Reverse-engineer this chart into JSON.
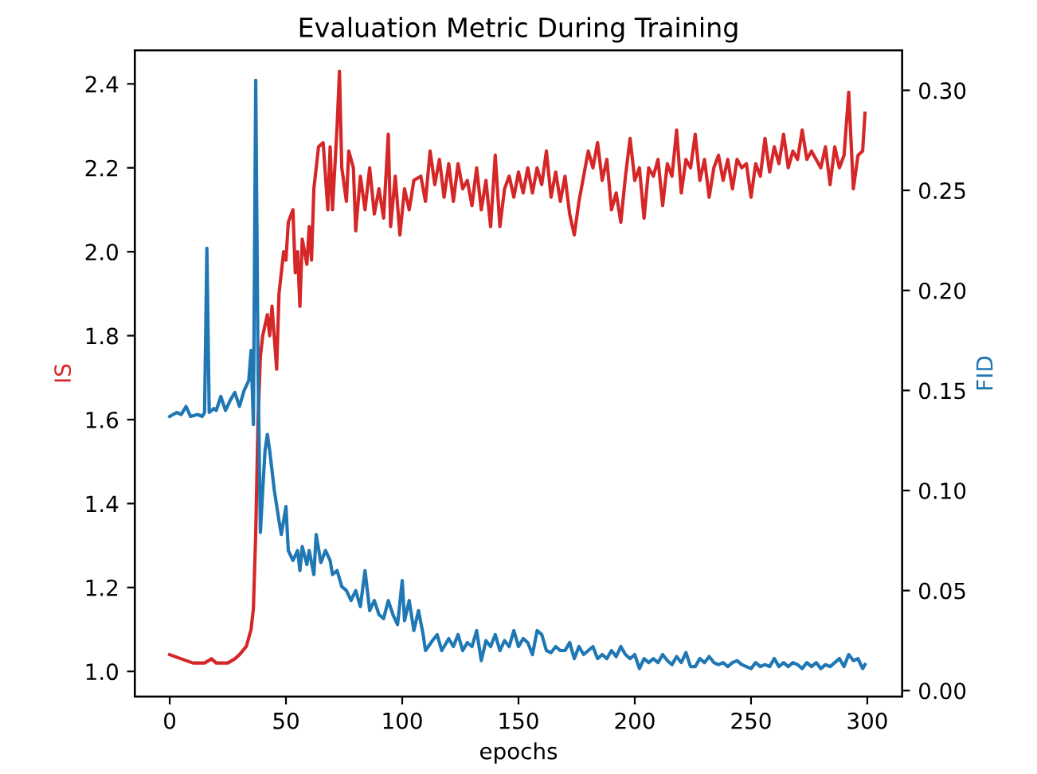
{
  "chart_data": {
    "type": "line",
    "title": "Evaluation Metric During Training",
    "xlabel": "epochs",
    "ylabel": "IS",
    "y2label": "FID",
    "xlim": [
      -15,
      315
    ],
    "xticks": [
      0,
      50,
      100,
      150,
      200,
      250,
      300
    ],
    "ylim": [
      0.94,
      2.48
    ],
    "yticks": [
      {
        "value": 1.0,
        "label": "1.0"
      },
      1.2,
      1.4,
      1.6,
      1.8,
      {
        "value": 2.0,
        "label": "2.0"
      },
      2.2,
      2.4
    ],
    "y2lim": [
      -0.003,
      0.32
    ],
    "y2ticks": [
      {
        "value": 0.0,
        "label": "0.00"
      },
      0.05,
      {
        "value": 0.1,
        "label": "0.10"
      },
      0.15,
      {
        "value": 0.2,
        "label": "0.20"
      },
      0.25,
      {
        "value": 0.3,
        "label": "0.30"
      }
    ],
    "grid": false,
    "series": [
      {
        "color": "#d62728",
        "axis": "y",
        "x": [
          0,
          5,
          10,
          15,
          18,
          20,
          25,
          28,
          30,
          33,
          35,
          36,
          37,
          38,
          39,
          40,
          42,
          43,
          44,
          46,
          47,
          49,
          50,
          51,
          53,
          54,
          55,
          56,
          57,
          59,
          60,
          61,
          62,
          64,
          66,
          68,
          69,
          70,
          72,
          73,
          74,
          76,
          77,
          79,
          80,
          82,
          84,
          86,
          88,
          90,
          92,
          94,
          95,
          97,
          99,
          101,
          103,
          105,
          108,
          110,
          112,
          114,
          116,
          118,
          120,
          122,
          124,
          126,
          128,
          130,
          132,
          134,
          136,
          138,
          140,
          142,
          144,
          146,
          148,
          150,
          152,
          154,
          156,
          158,
          160,
          162,
          164,
          166,
          168,
          170,
          172,
          174,
          176,
          178,
          180,
          182,
          184,
          186,
          188,
          190,
          192,
          194,
          196,
          198,
          200,
          202,
          204,
          206,
          208,
          210,
          212,
          214,
          216,
          218,
          220,
          222,
          224,
          226,
          228,
          230,
          232,
          234,
          236,
          238,
          240,
          242,
          244,
          246,
          248,
          250,
          252,
          254,
          256,
          258,
          260,
          262,
          264,
          266,
          268,
          270,
          272,
          274,
          276,
          278,
          280,
          282,
          284,
          286,
          288,
          290,
          292,
          294,
          296,
          298,
          299
        ],
        "values": [
          1.04,
          1.03,
          1.02,
          1.02,
          1.03,
          1.02,
          1.02,
          1.03,
          1.04,
          1.06,
          1.1,
          1.15,
          1.33,
          1.6,
          1.75,
          1.8,
          1.85,
          1.8,
          1.87,
          1.72,
          1.9,
          2.0,
          1.98,
          2.07,
          2.1,
          1.95,
          2.0,
          1.87,
          2.03,
          1.97,
          2.06,
          1.98,
          2.15,
          2.25,
          2.26,
          2.1,
          2.25,
          2.1,
          2.3,
          2.43,
          2.2,
          2.12,
          2.24,
          2.2,
          2.05,
          2.18,
          2.1,
          2.2,
          2.09,
          2.15,
          2.08,
          2.28,
          2.06,
          2.18,
          2.04,
          2.15,
          2.1,
          2.17,
          2.18,
          2.12,
          2.24,
          2.16,
          2.22,
          2.13,
          2.21,
          2.12,
          2.21,
          2.15,
          2.17,
          2.11,
          2.2,
          2.1,
          2.17,
          2.06,
          2.23,
          2.06,
          2.15,
          2.18,
          2.13,
          2.19,
          2.14,
          2.2,
          2.14,
          2.2,
          2.16,
          2.24,
          2.13,
          2.19,
          2.12,
          2.18,
          2.09,
          2.04,
          2.12,
          2.18,
          2.24,
          2.2,
          2.26,
          2.17,
          2.22,
          2.1,
          2.14,
          2.07,
          2.18,
          2.27,
          2.17,
          2.2,
          2.08,
          2.2,
          2.18,
          2.22,
          2.11,
          2.21,
          2.18,
          2.29,
          2.14,
          2.22,
          2.2,
          2.28,
          2.17,
          2.22,
          2.13,
          2.2,
          2.23,
          2.17,
          2.22,
          2.15,
          2.22,
          2.2,
          2.21,
          2.13,
          2.21,
          2.18,
          2.27,
          2.19,
          2.25,
          2.21,
          2.28,
          2.2,
          2.24,
          2.22,
          2.29,
          2.22,
          2.24,
          2.22,
          2.2,
          2.25,
          2.16,
          2.25,
          2.2,
          2.23,
          2.38,
          2.15,
          2.23,
          2.24,
          2.33
        ]
      },
      {
        "color": "#1f77b4",
        "axis": "y2",
        "x": [
          0,
          3,
          5,
          7,
          9,
          12,
          14,
          15,
          16,
          17,
          19,
          20,
          22,
          24,
          26,
          28,
          30,
          32,
          34,
          35,
          36,
          37,
          38,
          39,
          40,
          41,
          42,
          43,
          45,
          47,
          48,
          50,
          51,
          53,
          55,
          56,
          57,
          59,
          60,
          62,
          63,
          65,
          67,
          69,
          70,
          72,
          74,
          76,
          78,
          80,
          82,
          84,
          86,
          88,
          90,
          92,
          94,
          96,
          98,
          100,
          101,
          103,
          105,
          107,
          109,
          110,
          113,
          115,
          117,
          120,
          122,
          124,
          126,
          128,
          130,
          132,
          134,
          136,
          138,
          140,
          142,
          144,
          146,
          148,
          150,
          152,
          154,
          156,
          158,
          160,
          162,
          164,
          166,
          168,
          170,
          172,
          174,
          176,
          178,
          180,
          182,
          184,
          186,
          188,
          190,
          192,
          194,
          196,
          198,
          200,
          202,
          204,
          206,
          208,
          210,
          212,
          214,
          216,
          218,
          220,
          222,
          224,
          226,
          228,
          230,
          232,
          234,
          236,
          238,
          240,
          242,
          244,
          246,
          248,
          250,
          252,
          254,
          256,
          258,
          260,
          262,
          264,
          266,
          268,
          270,
          272,
          274,
          276,
          278,
          280,
          282,
          284,
          286,
          288,
          290,
          292,
          294,
          296,
          298,
          299
        ],
        "values": [
          0.137,
          0.139,
          0.138,
          0.142,
          0.137,
          0.138,
          0.137,
          0.139,
          0.221,
          0.139,
          0.141,
          0.14,
          0.147,
          0.14,
          0.145,
          0.149,
          0.142,
          0.15,
          0.155,
          0.17,
          0.133,
          0.305,
          0.16,
          0.079,
          0.1,
          0.12,
          0.128,
          0.12,
          0.1,
          0.085,
          0.078,
          0.092,
          0.07,
          0.065,
          0.07,
          0.06,
          0.072,
          0.063,
          0.07,
          0.058,
          0.078,
          0.064,
          0.07,
          0.065,
          0.058,
          0.06,
          0.052,
          0.05,
          0.045,
          0.05,
          0.042,
          0.06,
          0.04,
          0.045,
          0.038,
          0.036,
          0.045,
          0.038,
          0.033,
          0.055,
          0.035,
          0.045,
          0.03,
          0.04,
          0.028,
          0.02,
          0.025,
          0.028,
          0.02,
          0.026,
          0.022,
          0.028,
          0.02,
          0.024,
          0.022,
          0.03,
          0.015,
          0.025,
          0.022,
          0.028,
          0.02,
          0.025,
          0.022,
          0.03,
          0.022,
          0.026,
          0.024,
          0.018,
          0.03,
          0.028,
          0.02,
          0.019,
          0.022,
          0.02,
          0.02,
          0.024,
          0.016,
          0.022,
          0.018,
          0.02,
          0.022,
          0.016,
          0.018,
          0.016,
          0.02,
          0.017,
          0.022,
          0.018,
          0.016,
          0.018,
          0.011,
          0.016,
          0.014,
          0.016,
          0.014,
          0.018,
          0.015,
          0.013,
          0.017,
          0.014,
          0.019,
          0.012,
          0.012,
          0.016,
          0.014,
          0.017,
          0.014,
          0.013,
          0.014,
          0.012,
          0.014,
          0.015,
          0.013,
          0.012,
          0.011,
          0.014,
          0.012,
          0.013,
          0.012,
          0.016,
          0.012,
          0.014,
          0.012,
          0.014,
          0.013,
          0.011,
          0.014,
          0.012,
          0.014,
          0.011,
          0.013,
          0.012,
          0.014,
          0.016,
          0.012,
          0.018,
          0.015,
          0.016,
          0.011,
          0.013
        ]
      }
    ]
  }
}
